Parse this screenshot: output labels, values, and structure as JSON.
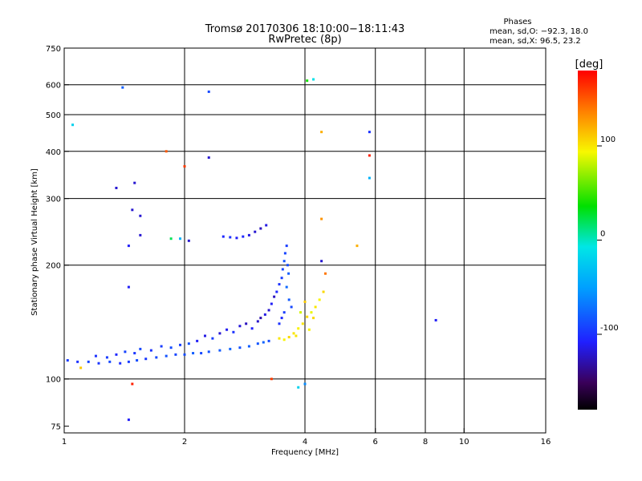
{
  "chart_data": {
    "type": "scatter",
    "title": "Tromsø 20170306 18:10:00−18:11:43",
    "subtitle": "RwPretec (8p)",
    "xlabel": "Frequency [MHz]",
    "ylabel": "Stationary phase Virtual Height [km]",
    "x_scale": "log",
    "y_scale": "log",
    "xlim": [
      1,
      16
    ],
    "ylim": [
      72,
      750
    ],
    "x_ticks": [
      1,
      2,
      4,
      6,
      8,
      10,
      16
    ],
    "x_tick_labels": [
      "1",
      "2",
      "4",
      "6",
      "8",
      "10",
      "16"
    ],
    "y_ticks": [
      75,
      100,
      200,
      300,
      400,
      500,
      600,
      750
    ],
    "y_tick_labels": [
      "75",
      "100",
      "200",
      "300",
      "400",
      "500",
      "600",
      "750"
    ],
    "x_grid": [
      1,
      2,
      4,
      6,
      8,
      10
    ],
    "y_grid": [
      100,
      200,
      300,
      400,
      500,
      600
    ],
    "stats": {
      "heading": "Phases",
      "line_o": "mean, sd,O: −92.3, 18.0",
      "line_x": "mean, sd,X:  96.5, 23.2"
    },
    "colorbar": {
      "label": "[deg]",
      "range": [
        -180,
        180
      ],
      "ticks": [
        100,
        0,
        -100
      ],
      "tick_labels": [
        "100",
        "0",
        "-100"
      ]
    },
    "series": [
      {
        "name": "trace-o-low",
        "points": [
          [
            1.02,
            112,
            -95
          ],
          [
            1.08,
            111,
            -100
          ],
          [
            1.15,
            111,
            -92
          ],
          [
            1.22,
            110,
            -98
          ],
          [
            1.3,
            111,
            -90
          ],
          [
            1.38,
            110,
            -102
          ],
          [
            1.45,
            111,
            -95
          ],
          [
            1.52,
            112,
            -88
          ],
          [
            1.6,
            113,
            -97
          ],
          [
            1.7,
            114,
            -90
          ],
          [
            1.8,
            115,
            -85
          ],
          [
            1.9,
            116,
            -92
          ],
          [
            2.0,
            116,
            -88
          ],
          [
            2.1,
            117,
            -80
          ],
          [
            2.2,
            117,
            -90
          ],
          [
            2.3,
            118,
            -85
          ],
          [
            2.45,
            119,
            -82
          ],
          [
            2.6,
            120,
            -78
          ],
          [
            2.75,
            121,
            -86
          ],
          [
            2.9,
            122,
            -80
          ],
          [
            3.05,
            124,
            -84
          ],
          [
            3.15,
            125,
            -78
          ],
          [
            3.25,
            126,
            -88
          ]
        ]
      },
      {
        "name": "trace-o-spread",
        "points": [
          [
            1.2,
            115,
            -100
          ],
          [
            1.28,
            114,
            -95
          ],
          [
            1.35,
            116,
            -105
          ],
          [
            1.42,
            118,
            -92
          ],
          [
            1.5,
            117,
            -98
          ],
          [
            1.55,
            120,
            -90
          ],
          [
            1.65,
            119,
            -100
          ],
          [
            1.75,
            122,
            -95
          ],
          [
            1.85,
            121,
            -88
          ],
          [
            1.95,
            123,
            -93
          ],
          [
            2.05,
            124,
            -85
          ],
          [
            2.15,
            126,
            -110
          ],
          [
            2.25,
            130,
            -115
          ],
          [
            2.35,
            128,
            -95
          ],
          [
            2.45,
            132,
            -120
          ],
          [
            2.55,
            135,
            -112
          ],
          [
            2.65,
            133,
            -100
          ],
          [
            2.75,
            138,
            -118
          ],
          [
            2.85,
            140,
            -125
          ],
          [
            2.95,
            136,
            -108
          ],
          [
            3.05,
            142,
            -122
          ],
          [
            3.1,
            145,
            -130
          ],
          [
            3.18,
            148,
            -115
          ],
          [
            3.25,
            152,
            -120
          ],
          [
            3.3,
            158,
            -110
          ],
          [
            3.35,
            165,
            -125
          ],
          [
            3.4,
            170,
            -105
          ],
          [
            3.45,
            178,
            -100
          ],
          [
            3.5,
            185,
            -95
          ],
          [
            3.52,
            195,
            -90
          ],
          [
            3.55,
            205,
            -85
          ],
          [
            3.57,
            215,
            -92
          ],
          [
            3.6,
            225,
            -95
          ],
          [
            3.62,
            200,
            -88
          ],
          [
            3.64,
            190,
            -80
          ],
          [
            3.6,
            175,
            -75
          ],
          [
            3.65,
            162,
            -82
          ],
          [
            3.7,
            155,
            -90
          ],
          [
            3.55,
            150,
            -95
          ],
          [
            3.5,
            145,
            -105
          ],
          [
            3.45,
            140,
            -100
          ]
        ]
      },
      {
        "name": "trace-f-layer",
        "points": [
          [
            2.5,
            238,
            -105
          ],
          [
            2.6,
            237,
            -100
          ],
          [
            2.7,
            236,
            -110
          ],
          [
            2.8,
            238,
            -105
          ],
          [
            2.9,
            240,
            -115
          ],
          [
            3.0,
            245,
            -120
          ],
          [
            3.1,
            250,
            -125
          ],
          [
            3.2,
            255,
            -115
          ]
        ]
      },
      {
        "name": "trace-x",
        "points": [
          [
            3.45,
            128,
            100
          ],
          [
            3.55,
            127,
            95
          ],
          [
            3.65,
            129,
            105
          ],
          [
            3.75,
            132,
            100
          ],
          [
            3.85,
            136,
            95
          ],
          [
            3.95,
            140,
            100
          ],
          [
            4.05,
            146,
            105
          ],
          [
            4.15,
            150,
            90
          ],
          [
            4.25,
            155,
            100
          ],
          [
            4.35,
            162,
            95
          ],
          [
            4.45,
            170,
            105
          ],
          [
            3.9,
            150,
            85
          ],
          [
            4.0,
            160,
            110
          ],
          [
            4.1,
            135,
            95
          ],
          [
            3.8,
            130,
            100
          ],
          [
            4.2,
            145,
            105
          ]
        ]
      },
      {
        "name": "outliers",
        "points": [
          [
            1.05,
            470,
            -20
          ],
          [
            1.4,
            590,
            -80
          ],
          [
            1.5,
            330,
            -120
          ],
          [
            1.48,
            280,
            -120
          ],
          [
            1.45,
            225,
            -110
          ],
          [
            1.45,
            175,
            -110
          ],
          [
            1.48,
            97,
            170
          ],
          [
            1.45,
            78,
            -110
          ],
          [
            1.55,
            270,
            -120
          ],
          [
            1.55,
            240,
            -120
          ],
          [
            1.35,
            320,
            -120
          ],
          [
            1.8,
            400,
            150
          ],
          [
            1.85,
            235,
            20
          ],
          [
            1.95,
            235,
            -40
          ],
          [
            2.05,
            232,
            -120
          ],
          [
            2.0,
            365,
            160
          ],
          [
            2.3,
            385,
            -120
          ],
          [
            2.3,
            575,
            -90
          ],
          [
            4.05,
            615,
            40
          ],
          [
            4.2,
            620,
            -10
          ],
          [
            4.4,
            450,
            120
          ],
          [
            4.4,
            265,
            130
          ],
          [
            4.4,
            205,
            -120
          ],
          [
            4.5,
            190,
            140
          ],
          [
            5.4,
            225,
            120
          ],
          [
            5.8,
            450,
            -100
          ],
          [
            5.8,
            390,
            170
          ],
          [
            5.8,
            340,
            -40
          ],
          [
            4.0,
            97,
            -60
          ],
          [
            3.85,
            95,
            -20
          ],
          [
            3.3,
            100,
            160
          ],
          [
            8.5,
            143,
            -110
          ],
          [
            1.1,
            107,
            110
          ]
        ]
      }
    ]
  }
}
